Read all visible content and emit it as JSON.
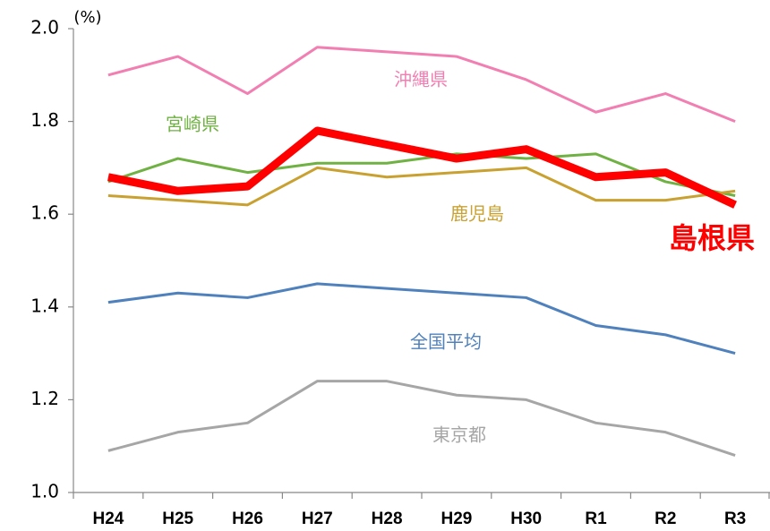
{
  "chart_data": {
    "type": "line",
    "y_unit": "(%)",
    "categories": [
      "H24",
      "H25",
      "H26",
      "H27",
      "H28",
      "H29",
      "H30",
      "R1",
      "R2",
      "R3"
    ],
    "series": [
      {
        "name": "沖縄県",
        "color": "#f27fb2",
        "values": [
          1.9,
          1.94,
          1.86,
          1.96,
          1.95,
          1.94,
          1.89,
          1.82,
          1.86,
          1.8
        ]
      },
      {
        "name": "宮崎県",
        "color": "#70b143",
        "values": [
          1.67,
          1.72,
          1.69,
          1.71,
          1.71,
          1.73,
          1.72,
          1.73,
          1.67,
          1.64
        ]
      },
      {
        "name": "鹿児島",
        "color": "#c9a131",
        "values": [
          1.64,
          1.63,
          1.62,
          1.7,
          1.68,
          1.69,
          1.7,
          1.63,
          1.63,
          1.65
        ]
      },
      {
        "name": "全国平均",
        "color": "#4f81bd",
        "values": [
          1.41,
          1.43,
          1.42,
          1.45,
          1.44,
          1.43,
          1.42,
          1.36,
          1.34,
          1.3
        ]
      },
      {
        "name": "東京都",
        "color": "#a6a6a6",
        "values": [
          1.09,
          1.13,
          1.15,
          1.24,
          1.24,
          1.21,
          1.2,
          1.15,
          1.13,
          1.08
        ]
      },
      {
        "name": "島根県",
        "color": "#ff0000",
        "values": [
          1.68,
          1.65,
          1.66,
          1.78,
          1.75,
          1.72,
          1.74,
          1.68,
          1.69,
          1.62
        ]
      }
    ],
    "ylim": [
      1.0,
      2.0
    ],
    "yticks": [
      {
        "value": 1.0,
        "label": "1.0"
      },
      {
        "value": 1.2,
        "label": "1.2"
      },
      {
        "value": 1.4,
        "label": "1.4"
      },
      {
        "value": 1.6,
        "label": "1.6"
      },
      {
        "value": 1.8,
        "label": "1.8"
      },
      {
        "value": 2.0,
        "label": "2.0"
      }
    ],
    "legend": "direct-labels"
  }
}
